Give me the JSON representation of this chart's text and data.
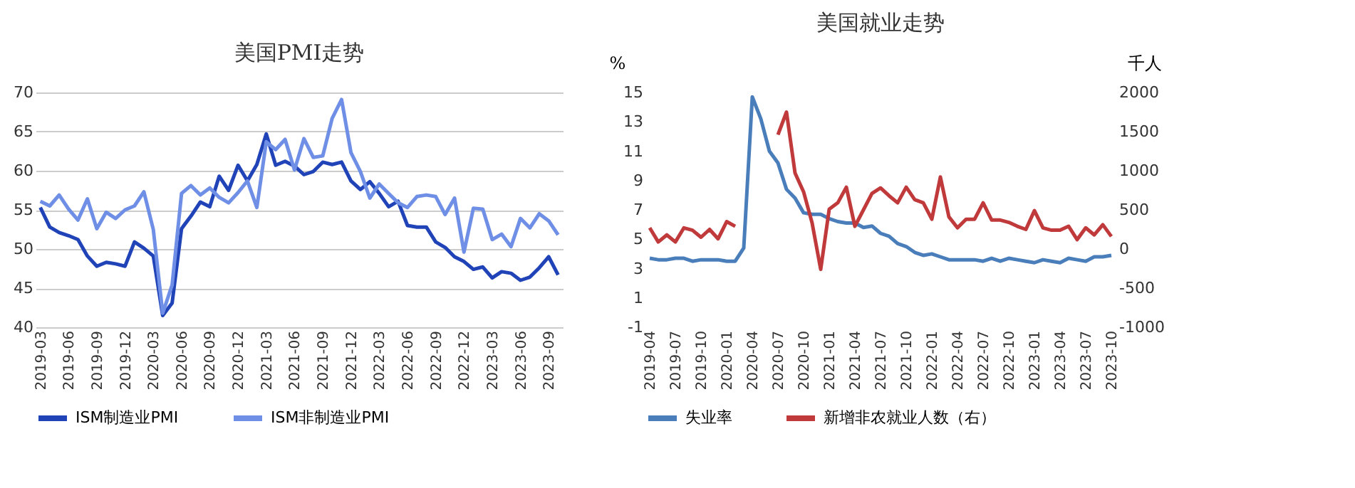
{
  "chart_data": [
    {
      "type": "line",
      "title": "美国PMI走势",
      "categories": [
        "2019-03",
        null,
        null,
        "2019-06",
        null,
        null,
        "2019-09",
        null,
        null,
        "2019-12",
        null,
        null,
        "2020-03",
        null,
        null,
        "2020-06",
        null,
        null,
        "2020-09",
        null,
        null,
        "2020-12",
        null,
        null,
        "2021-03",
        null,
        null,
        "2021-06",
        null,
        null,
        "2021-09",
        null,
        null,
        "2021-12",
        null,
        null,
        "2022-03",
        null,
        null,
        "2022-06",
        null,
        null,
        "2022-09",
        null,
        null,
        "2022-12",
        null,
        null,
        "2023-03",
        null,
        null,
        "2023-06",
        null,
        null,
        "2023-09",
        null
      ],
      "series": [
        {
          "name": "ISM制造业PMI",
          "color": "#2043b8",
          "values": [
            55.3,
            52.8,
            52.1,
            51.7,
            51.2,
            49.1,
            47.8,
            48.3,
            48.1,
            47.8,
            50.9,
            50.1,
            49.1,
            41.5,
            43.1,
            52.6,
            54.2,
            56.0,
            55.4,
            59.3,
            57.5,
            60.7,
            58.7,
            60.8,
            64.7,
            60.7,
            61.2,
            60.6,
            59.5,
            59.9,
            61.1,
            60.8,
            61.1,
            58.7,
            57.6,
            58.6,
            57.1,
            55.4,
            56.1,
            53.0,
            52.8,
            52.8,
            50.9,
            50.2,
            49.0,
            48.4,
            47.4,
            47.7,
            46.3,
            47.1,
            46.9,
            46.0,
            46.4,
            47.6,
            49.0,
            46.7
          ]
        },
        {
          "name": "ISM非制造业PMI",
          "color": "#6f8fe6",
          "values": [
            56.1,
            55.5,
            56.9,
            55.1,
            53.7,
            56.4,
            52.6,
            54.7,
            53.9,
            55.0,
            55.5,
            57.3,
            52.5,
            41.8,
            45.4,
            57.1,
            58.1,
            56.9,
            57.8,
            56.6,
            55.9,
            57.2,
            58.7,
            55.3,
            63.7,
            62.7,
            64.0,
            60.1,
            64.1,
            61.7,
            61.9,
            66.7,
            69.1,
            62.3,
            59.9,
            56.5,
            58.3,
            57.1,
            55.9,
            55.3,
            56.7,
            56.9,
            56.7,
            54.4,
            56.5,
            49.6,
            55.2,
            55.1,
            51.2,
            51.9,
            50.3,
            53.9,
            52.7,
            54.5,
            53.6,
            51.8
          ]
        }
      ],
      "ylim": [
        40,
        70
      ],
      "yticks": [
        40,
        45,
        50,
        55,
        60,
        65,
        70
      ],
      "grid": "y",
      "legend": "bottom"
    },
    {
      "type": "line",
      "title": "美国就业走势",
      "ylabel": "%",
      "y2label": "千人",
      "categories": [
        "2019-04",
        null,
        null,
        "2019-07",
        null,
        null,
        "2019-10",
        null,
        null,
        "2020-01",
        null,
        null,
        "2020-04",
        null,
        null,
        "2020-07",
        null,
        null,
        "2020-10",
        null,
        null,
        "2021-01",
        null,
        null,
        "2021-04",
        null,
        null,
        "2021-07",
        null,
        null,
        "2021-10",
        null,
        null,
        "2022-01",
        null,
        null,
        "2022-04",
        null,
        null,
        "2022-07",
        null,
        null,
        "2022-10",
        null,
        null,
        "2023-01",
        null,
        null,
        "2023-04",
        null,
        null,
        "2023-07",
        null,
        null,
        "2023-10"
      ],
      "series": [
        {
          "name": "失业率",
          "color": "#4a7ebb",
          "values": [
            3.7,
            3.6,
            3.6,
            3.7,
            3.7,
            3.5,
            3.6,
            3.6,
            3.6,
            3.5,
            3.5,
            4.4,
            14.7,
            13.2,
            11.0,
            10.2,
            8.4,
            7.8,
            6.8,
            6.7,
            6.7,
            6.4,
            6.2,
            6.1,
            6.1,
            5.8,
            5.9,
            5.4,
            5.2,
            4.7,
            4.5,
            4.1,
            3.9,
            4.0,
            3.8,
            3.6,
            3.6,
            3.6,
            3.6,
            3.5,
            3.7,
            3.5,
            3.7,
            3.6,
            3.5,
            3.4,
            3.6,
            3.5,
            3.4,
            3.7,
            3.6,
            3.5,
            3.8,
            3.8,
            3.9
          ]
        },
        {
          "name": "新增非农就业人数（右）",
          "color": "#c0393b",
          "axis": "y2",
          "values": [
            270,
            90,
            180,
            90,
            270,
            240,
            150,
            250,
            130,
            350,
            290,
            null,
            null,
            null,
            null,
            1460,
            1750,
            970,
            730,
            330,
            -260,
            510,
            590,
            790,
            290,
            500,
            710,
            780,
            680,
            590,
            790,
            630,
            590,
            380,
            920,
            410,
            270,
            380,
            380,
            590,
            370,
            370,
            340,
            290,
            250,
            490,
            270,
            240,
            240,
            290,
            120,
            270,
            180,
            310,
            160
          ]
        }
      ],
      "ylim": [
        -1,
        15
      ],
      "yticks": [
        -1,
        1,
        3,
        5,
        7,
        9,
        11,
        13,
        15
      ],
      "y2lim": [
        -1000,
        2000
      ],
      "y2ticks": [
        -1000,
        -500,
        0,
        500,
        1000,
        1500,
        2000
      ],
      "legend": "bottom"
    }
  ]
}
